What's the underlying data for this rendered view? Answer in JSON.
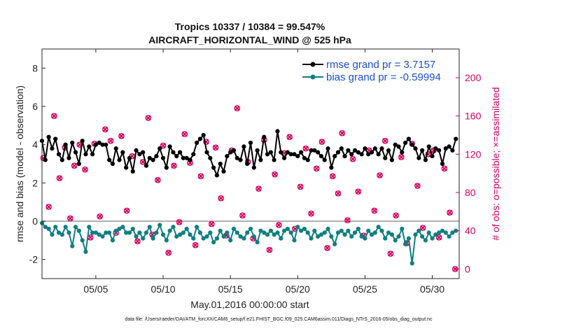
{
  "chart_data": {
    "type": "line",
    "title_line1": "Tropics 10337 / 10384 = 99.547%",
    "title_line2": "AIRCRAFT_HORIZONTAL_WIND @ 525 hPa",
    "xlabel": "May.01,2016 00:00:00 start",
    "ylabel_left": "rmse and bias (model - observation)",
    "ylabel_right": "# of obs: o=possible; ×=assimilated",
    "xlim": [
      1.0,
      32.0
    ],
    "ylim_left": [
      -3,
      9
    ],
    "ylim_right": [
      -10,
      230
    ],
    "yticks_left": [
      -2,
      0,
      2,
      4,
      6,
      8
    ],
    "yticks_right": [
      0,
      40,
      80,
      120,
      160,
      200
    ],
    "xticks": [
      5,
      10,
      15,
      20,
      25,
      30
    ],
    "xtick_labels": [
      "05/05",
      "05/10",
      "05/15",
      "05/20",
      "05/25",
      "05/30"
    ],
    "legend": [
      "rmse grand pr = 3.7157",
      "bias grand pr = -0.59994"
    ],
    "legend_position": "top-right",
    "colors": {
      "rmse": "#000000",
      "bias": "#0f7f7f",
      "obs": "#d6005d",
      "zero_line": "#b0b0b0",
      "axis": "#262626"
    },
    "x": [
      1.0,
      1.25,
      1.5,
      1.75,
      2.0,
      2.25,
      2.5,
      2.75,
      3.0,
      3.25,
      3.5,
      3.75,
      4.0,
      4.25,
      4.5,
      4.75,
      5.0,
      5.25,
      5.5,
      5.75,
      6.0,
      6.25,
      6.5,
      6.75,
      7.0,
      7.25,
      7.5,
      7.75,
      8.0,
      8.25,
      8.5,
      8.75,
      9.0,
      9.25,
      9.5,
      9.75,
      10.0,
      10.25,
      10.5,
      10.75,
      11.0,
      11.25,
      11.5,
      11.75,
      12.0,
      12.25,
      12.5,
      12.75,
      13.0,
      13.25,
      13.5,
      13.75,
      14.0,
      14.25,
      14.5,
      14.75,
      15.0,
      15.25,
      15.5,
      15.75,
      16.0,
      16.25,
      16.5,
      16.75,
      17.0,
      17.25,
      17.5,
      17.75,
      18.0,
      18.25,
      18.5,
      18.75,
      19.0,
      19.25,
      19.5,
      19.75,
      20.0,
      20.25,
      20.5,
      20.75,
      21.0,
      21.25,
      21.5,
      21.75,
      22.0,
      22.25,
      22.5,
      22.75,
      23.0,
      23.25,
      23.5,
      23.75,
      24.0,
      24.25,
      24.5,
      24.75,
      25.0,
      25.25,
      25.5,
      25.75,
      26.0,
      26.25,
      26.5,
      26.75,
      27.0,
      27.25,
      27.5,
      27.75,
      28.0,
      28.25,
      28.5,
      28.75,
      29.0,
      29.25,
      29.5,
      29.75,
      30.0,
      30.25,
      30.5,
      30.75,
      31.0,
      31.25,
      31.5,
      31.75
    ],
    "series": [
      {
        "name": "rmse",
        "values": [
          4.2,
          3.2,
          4.4,
          3.8,
          4.3,
          3.5,
          3.2,
          4.0,
          3.3,
          4.1,
          3.6,
          3.0,
          4.2,
          3.5,
          3.9,
          3.5,
          4.0,
          4.1,
          4.0,
          4.0,
          3.2,
          3.0,
          3.8,
          3.2,
          3.6,
          2.8,
          3.3,
          2.6,
          3.7,
          3.5,
          3.6,
          2.9,
          3.3,
          3.2,
          3.4,
          3.8,
          3.3,
          2.8,
          3.9,
          3.6,
          3.4,
          3.6,
          3.3,
          3.3,
          3.2,
          3.5,
          4.1,
          4.3,
          4.5,
          3.6,
          3.3,
          2.8,
          2.4,
          3.0,
          2.6,
          3.4,
          3.6,
          3.7,
          3.3,
          3.2,
          3.9,
          3.0,
          4.1,
          2.8,
          3.7,
          3.2,
          4.4,
          3.5,
          3.6,
          3.2,
          4.7,
          3.6,
          3.3,
          3.6,
          3.5,
          3.5,
          3.4,
          3.6,
          3.3,
          3.2,
          3.7,
          3.7,
          3.6,
          3.4,
          3.2,
          3.8,
          2.8,
          3.4,
          3.6,
          3.8,
          3.4,
          3.7,
          3.5,
          3.7,
          3.6,
          3.5,
          3.8,
          3.5,
          3.6,
          3.8,
          3.5,
          3.8,
          3.3,
          3.7,
          3.2,
          4.0,
          3.9,
          3.6,
          4.1,
          4.3,
          4.0,
          3.8,
          3.3,
          3.7,
          3.2,
          3.9,
          3.4,
          3.8,
          3.7,
          3.0,
          3.8,
          3.9,
          3.7,
          4.3
        ],
        "color": "#000000"
      },
      {
        "name": "bias",
        "values": [
          -0.1,
          -0.3,
          -0.4,
          -0.7,
          -0.3,
          -0.6,
          -0.7,
          -0.3,
          -0.6,
          -1.3,
          -0.3,
          -0.5,
          -1.0,
          -1.6,
          -0.3,
          -0.6,
          -0.6,
          -0.7,
          -0.8,
          -0.6,
          -0.6,
          -1.0,
          -0.5,
          -0.4,
          -0.3,
          -0.6,
          -0.6,
          -0.4,
          -0.8,
          -0.6,
          -0.9,
          -0.6,
          -0.3,
          -0.9,
          -0.6,
          -0.2,
          -0.7,
          -1.0,
          -0.5,
          -0.3,
          -0.8,
          -0.7,
          -0.6,
          -0.4,
          -0.7,
          -0.9,
          -0.3,
          -0.6,
          -0.9,
          -0.8,
          -0.6,
          -1.1,
          -0.9,
          -0.5,
          -0.8,
          -0.6,
          -1.0,
          -0.4,
          -0.6,
          -0.8,
          -0.9,
          -0.6,
          -0.4,
          -0.8,
          -1.1,
          -0.5,
          -0.6,
          -0.7,
          -0.5,
          -0.7,
          -0.6,
          -0.9,
          -0.5,
          -0.4,
          -0.6,
          -1.0,
          -0.3,
          -0.5,
          -0.4,
          -0.6,
          -0.9,
          -0.5,
          -0.8,
          -0.7,
          -0.6,
          -0.4,
          -0.8,
          -1.2,
          -0.6,
          -0.5,
          -0.7,
          -0.5,
          -0.8,
          -0.6,
          -0.4,
          -0.8,
          -0.9,
          -0.5,
          -0.7,
          -0.6,
          -0.3,
          -0.5,
          -0.9,
          -0.6,
          -0.7,
          -1.0,
          -0.8,
          -0.4,
          -1.2,
          -0.9,
          -2.2,
          -0.7,
          -0.5,
          -0.8,
          -1.0,
          -0.6,
          -0.9,
          -0.7,
          -0.6,
          -0.5,
          -0.6,
          -0.8,
          -0.6,
          -0.5
        ],
        "color": "#0f7f7f"
      }
    ],
    "obs_counts": [
      {
        "x": 1.1,
        "y": 116
      },
      {
        "x": 1.5,
        "y": 65
      },
      {
        "x": 1.9,
        "y": 160
      },
      {
        "x": 2.3,
        "y": 95
      },
      {
        "x": 2.7,
        "y": 127
      },
      {
        "x": 3.1,
        "y": 53
      },
      {
        "x": 3.4,
        "y": 108
      },
      {
        "x": 3.8,
        "y": 130
      },
      {
        "x": 4.2,
        "y": 104
      },
      {
        "x": 4.6,
        "y": 33
      },
      {
        "x": 4.9,
        "y": 131
      },
      {
        "x": 5.3,
        "y": 55
      },
      {
        "x": 5.7,
        "y": 146
      },
      {
        "x": 6.1,
        "y": 134
      },
      {
        "x": 6.5,
        "y": 38
      },
      {
        "x": 6.9,
        "y": 139
      },
      {
        "x": 7.3,
        "y": 61
      },
      {
        "x": 7.7,
        "y": 118
      },
      {
        "x": 8.1,
        "y": 29
      },
      {
        "x": 8.5,
        "y": 112
      },
      {
        "x": 8.9,
        "y": 158
      },
      {
        "x": 9.2,
        "y": 36
      },
      {
        "x": 9.6,
        "y": 93
      },
      {
        "x": 10.0,
        "y": 129
      },
      {
        "x": 10.4,
        "y": 17
      },
      {
        "x": 10.8,
        "y": 108
      },
      {
        "x": 11.2,
        "y": 49
      },
      {
        "x": 11.6,
        "y": 141
      },
      {
        "x": 12.0,
        "y": 111
      },
      {
        "x": 12.4,
        "y": 25
      },
      {
        "x": 12.8,
        "y": 97
      },
      {
        "x": 13.2,
        "y": 133
      },
      {
        "x": 13.6,
        "y": 47
      },
      {
        "x": 13.9,
        "y": 127
      },
      {
        "x": 14.3,
        "y": 74
      },
      {
        "x": 14.7,
        "y": 35
      },
      {
        "x": 15.1,
        "y": 124
      },
      {
        "x": 15.5,
        "y": 168
      },
      {
        "x": 15.9,
        "y": 56
      },
      {
        "x": 16.3,
        "y": 112
      },
      {
        "x": 16.7,
        "y": 32
      },
      {
        "x": 17.1,
        "y": 84
      },
      {
        "x": 17.5,
        "y": 135
      },
      {
        "x": 17.9,
        "y": 20
      },
      {
        "x": 18.3,
        "y": 99
      },
      {
        "x": 18.6,
        "y": 46
      },
      {
        "x": 19.0,
        "y": 121
      },
      {
        "x": 19.4,
        "y": 138
      },
      {
        "x": 19.8,
        "y": 42
      },
      {
        "x": 20.2,
        "y": 86
      },
      {
        "x": 20.6,
        "y": 126
      },
      {
        "x": 21.0,
        "y": 58
      },
      {
        "x": 21.4,
        "y": 105
      },
      {
        "x": 21.8,
        "y": 133
      },
      {
        "x": 22.2,
        "y": 22
      },
      {
        "x": 22.6,
        "y": 97
      },
      {
        "x": 23.0,
        "y": 79
      },
      {
        "x": 23.3,
        "y": 142
      },
      {
        "x": 23.7,
        "y": 51
      },
      {
        "x": 24.1,
        "y": 115
      },
      {
        "x": 24.5,
        "y": 81
      },
      {
        "x": 24.9,
        "y": 35
      },
      {
        "x": 25.3,
        "y": 124
      },
      {
        "x": 25.7,
        "y": 61
      },
      {
        "x": 26.1,
        "y": 98
      },
      {
        "x": 26.5,
        "y": 134
      },
      {
        "x": 26.9,
        "y": 16
      },
      {
        "x": 27.3,
        "y": 56
      },
      {
        "x": 27.7,
        "y": 117
      },
      {
        "x": 28.1,
        "y": 27
      },
      {
        "x": 28.5,
        "y": 131
      },
      {
        "x": 28.9,
        "y": 87
      },
      {
        "x": 29.3,
        "y": 43
      },
      {
        "x": 29.7,
        "y": 120
      },
      {
        "x": 30.1,
        "y": 124
      },
      {
        "x": 30.5,
        "y": 33
      },
      {
        "x": 30.9,
        "y": 105
      },
      {
        "x": 31.3,
        "y": 59
      },
      {
        "x": 31.7,
        "y": 0
      }
    ]
  },
  "footer": {
    "data_file": "data file: /Users/raeder/DAI/ATM_forcXX/CAM6_setup/f.e21.FHIST_BGC.f09_025.CAM6assim.011/Diags_NTrS_2016-05/obs_diag_output.nc"
  }
}
